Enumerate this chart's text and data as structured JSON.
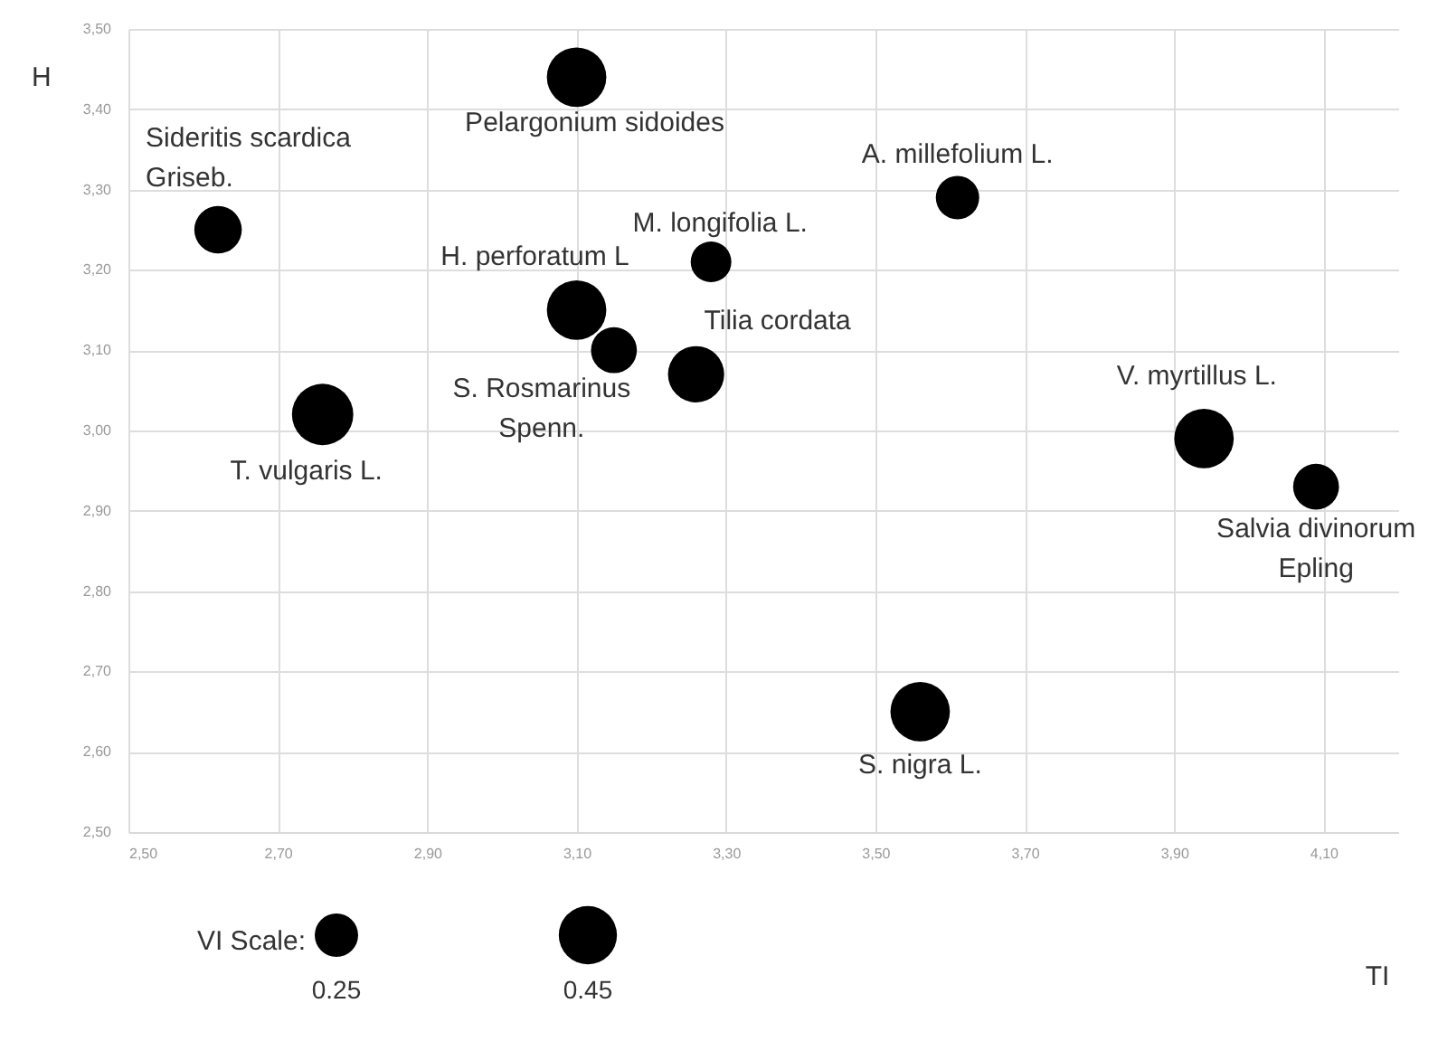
{
  "chart_data": {
    "type": "bubble",
    "xlabel": "TI",
    "ylabel": "H",
    "legend_title": "VI Scale:",
    "x": [
      2.62,
      3.1,
      3.28,
      3.61,
      3.1,
      3.15,
      3.26,
      2.76,
      3.94,
      4.09,
      3.56
    ],
    "values": [
      3.25,
      3.44,
      3.21,
      3.29,
      3.15,
      3.1,
      3.07,
      3.02,
      2.99,
      2.93,
      2.65
    ],
    "sizes": [
      0.3,
      0.47,
      0.22,
      0.25,
      0.47,
      0.28,
      0.42,
      0.5,
      0.47,
      0.28,
      0.47
    ],
    "size_legend": [
      0.25,
      0.45
    ],
    "color": "#000000",
    "annotations": [
      {
        "text": "Sideritis scardica\nGriseb.",
        "x": 2.62,
        "y": 3.25
      },
      {
        "text": "Pelargonium sidoides",
        "x": 3.1,
        "y": 3.44
      },
      {
        "text": "M. longifolia L.",
        "x": 3.28,
        "y": 3.21
      },
      {
        "text": "A. millefolium L.",
        "x": 3.61,
        "y": 3.29
      },
      {
        "text": "H. perforatum L",
        "x": 3.1,
        "y": 3.15
      },
      {
        "text": "S. Rosmarinus\nSpenn.",
        "x": 3.15,
        "y": 3.1
      },
      {
        "text": "Tilia cordata",
        "x": 3.26,
        "y": 3.07
      },
      {
        "text": "T. vulgaris L.",
        "x": 2.76,
        "y": 3.02
      },
      {
        "text": "V. myrtillus L.",
        "x": 3.94,
        "y": 2.99
      },
      {
        "text": "Salvia divinorum\nEpling",
        "x": 4.09,
        "y": 2.93
      },
      {
        "text": "S. nigra L.",
        "x": 3.56,
        "y": 2.65
      }
    ],
    "xlim": [
      2.5,
      4.2
    ],
    "xticks": [
      {
        "value": 2.5,
        "label": "2,50"
      },
      {
        "value": 2.7,
        "label": "2,70"
      },
      {
        "value": 2.9,
        "label": "2,90"
      },
      {
        "value": 3.1,
        "label": "3,10"
      },
      {
        "value": 3.3,
        "label": "3,30"
      },
      {
        "value": 3.5,
        "label": "3,50"
      },
      {
        "value": 3.7,
        "label": "3,70"
      },
      {
        "value": 3.9,
        "label": "3,90"
      },
      {
        "value": 4.1,
        "label": "4,10"
      }
    ],
    "ylim": [
      2.5,
      3.5
    ],
    "yticks": [
      {
        "value": 2.5,
        "label": "2,50"
      },
      {
        "value": 2.6,
        "label": "2,60"
      },
      {
        "value": 2.7,
        "label": "2,70"
      },
      {
        "value": 2.8,
        "label": "2,80"
      },
      {
        "value": 2.9,
        "label": "2,90"
      },
      {
        "value": 3.0,
        "label": "3,00"
      },
      {
        "value": 3.1,
        "label": "3,10"
      },
      {
        "value": 3.2,
        "label": "3,20"
      },
      {
        "value": 3.3,
        "label": "3,30"
      },
      {
        "value": 3.4,
        "label": "3,40"
      },
      {
        "value": 3.5,
        "label": "3,50"
      }
    ],
    "grid": true
  }
}
